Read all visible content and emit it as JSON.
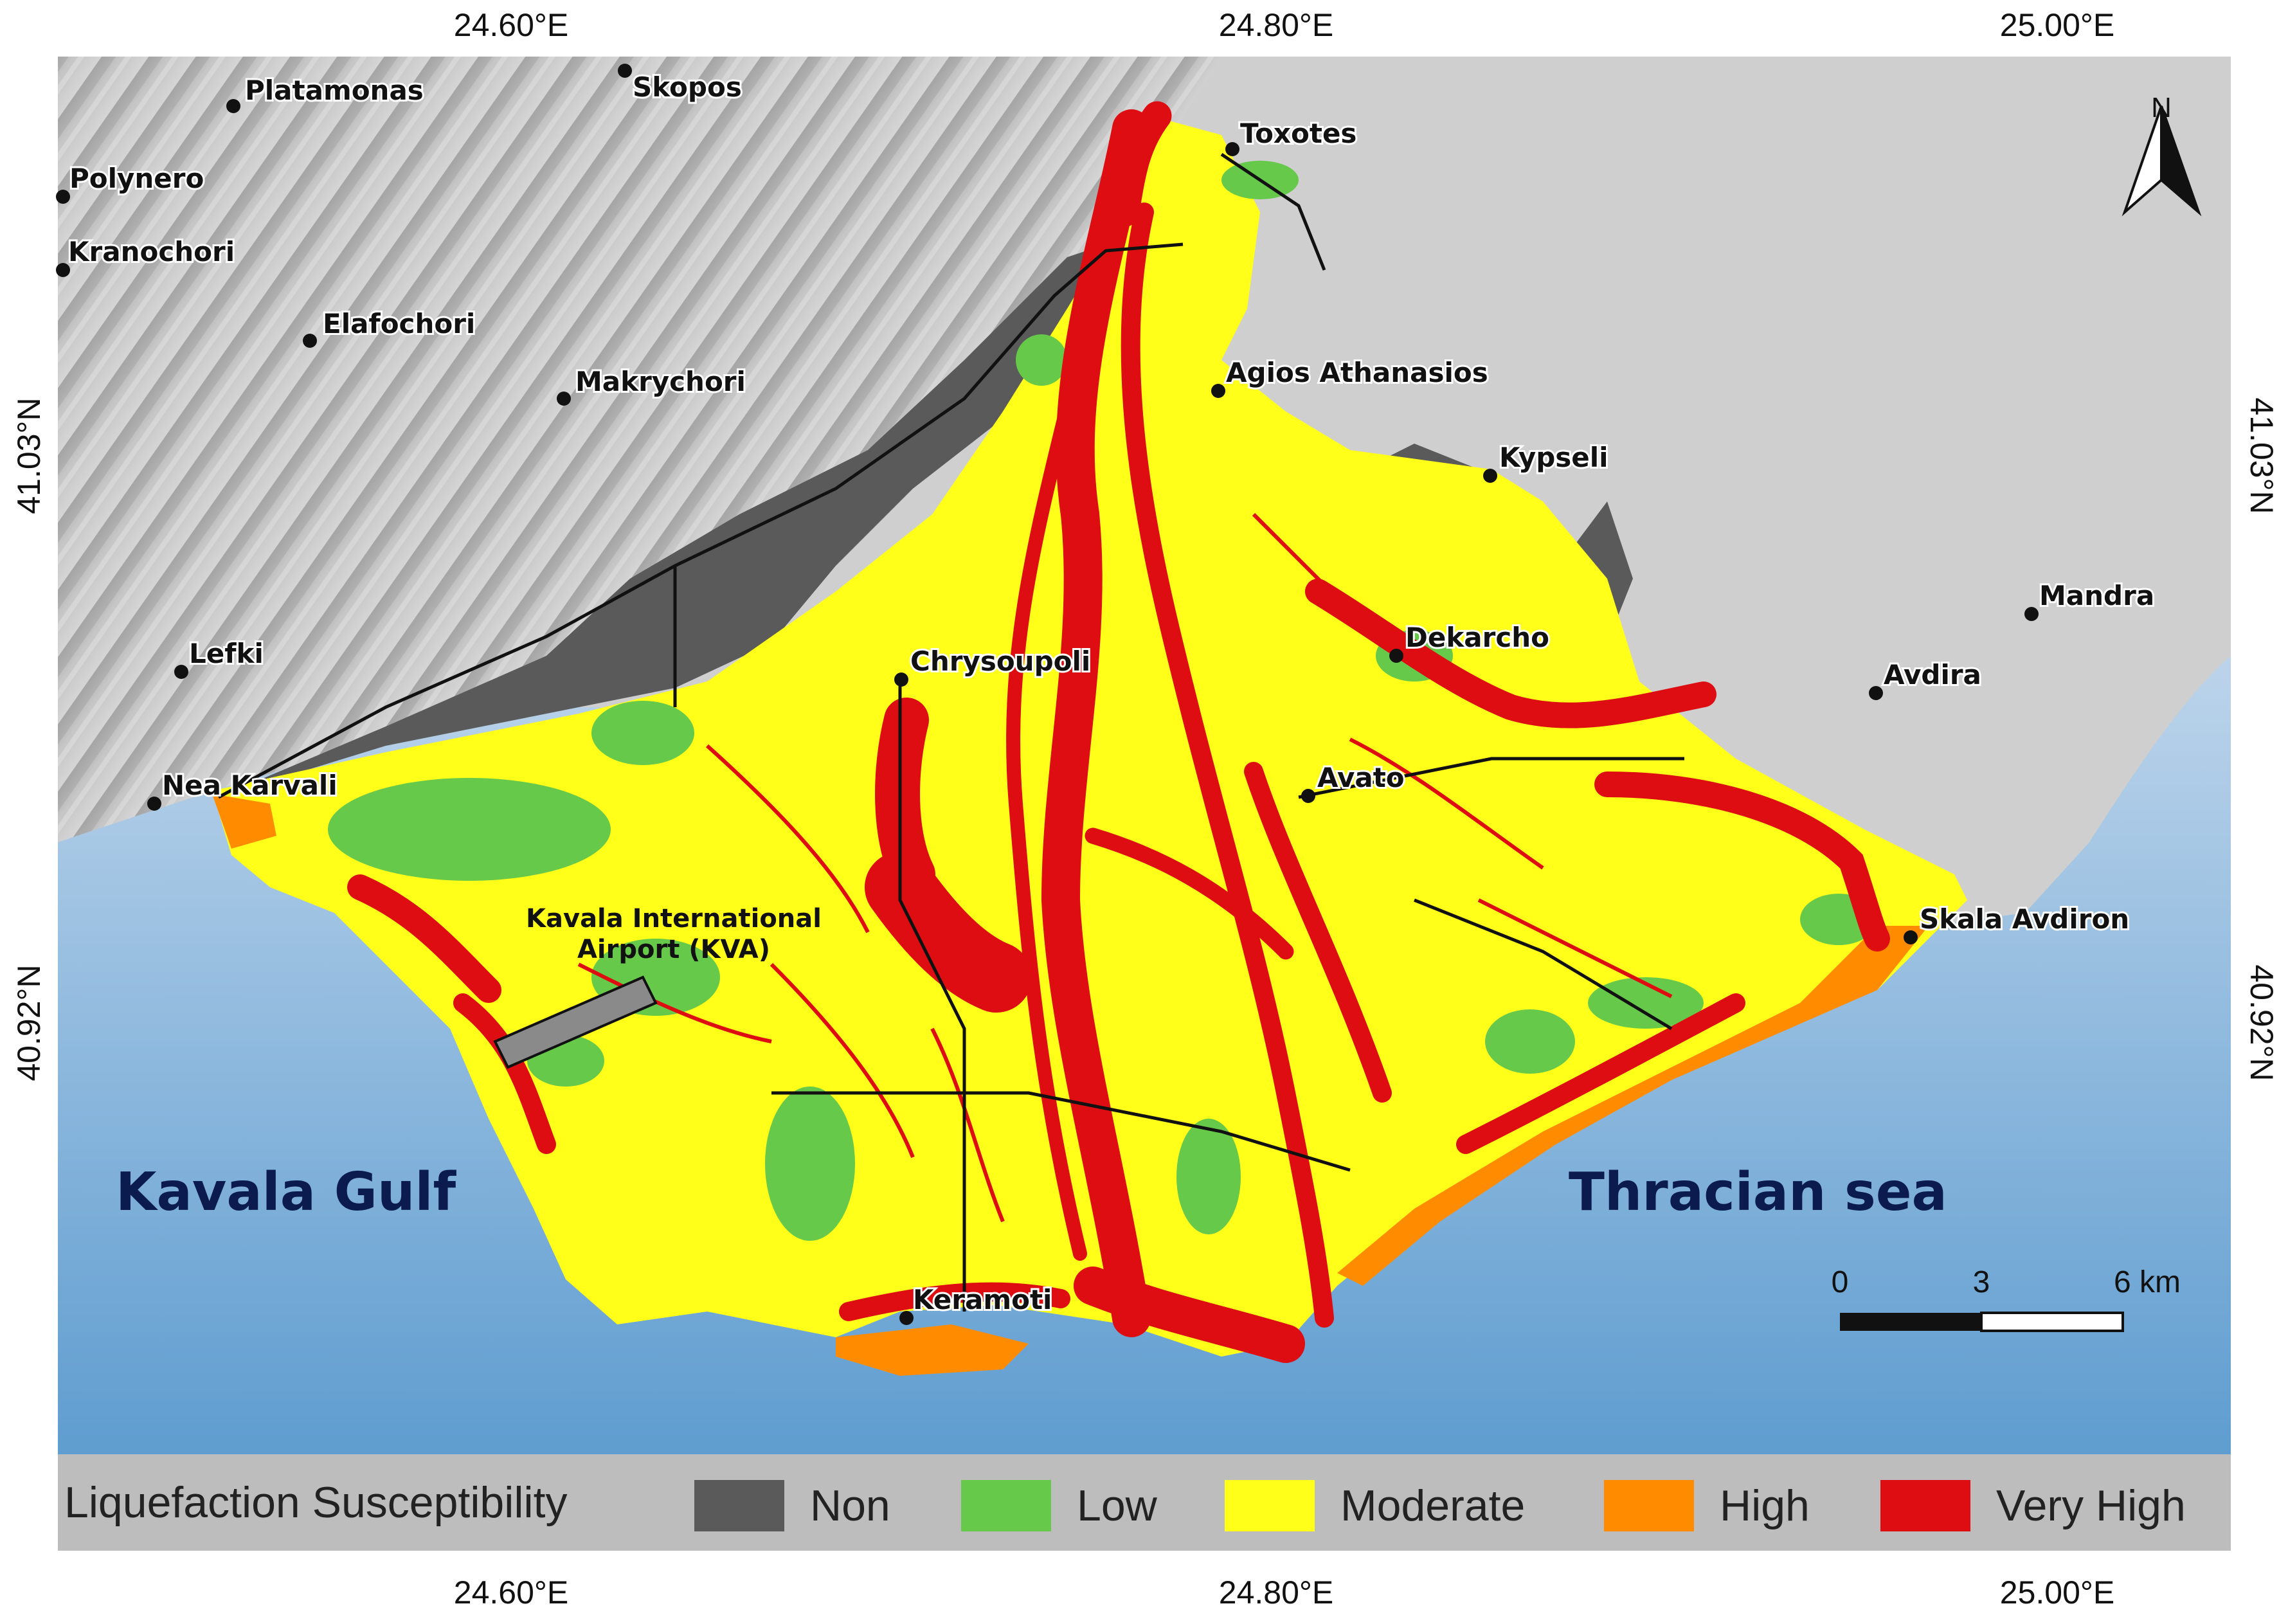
{
  "map": {
    "lon_labels": [
      "24.60°E",
      "24.80°E",
      "25.00°E"
    ],
    "lat_labels": [
      "41.03°N",
      "40.92°N"
    ],
    "places": [
      {
        "name": "Platamonas"
      },
      {
        "name": "Skopos"
      },
      {
        "name": "Toxotes"
      },
      {
        "name": "Polynero"
      },
      {
        "name": "Kranochori"
      },
      {
        "name": "Elafochori"
      },
      {
        "name": "Makrychori"
      },
      {
        "name": "Agios Athanasios"
      },
      {
        "name": "Kypseli"
      },
      {
        "name": "Lefki"
      },
      {
        "name": "Chrysoupoli"
      },
      {
        "name": "Dekarcho"
      },
      {
        "name": "Mandra"
      },
      {
        "name": "Avdira"
      },
      {
        "name": "Avato"
      },
      {
        "name": "Nea Karvali"
      },
      {
        "name": "Skala Avdiron"
      },
      {
        "name": "Keramoti"
      }
    ],
    "airport_label_line1": "Kavala International",
    "airport_label_line2": "Airport (KVA)",
    "sea_labels": [
      "Kavala Gulf",
      "Thracian sea"
    ],
    "north_arrow_label": "N",
    "scale_bar": {
      "ticks": [
        "0",
        "3",
        "6 km"
      ]
    }
  },
  "legend": {
    "title": "Liquefaction Susceptibility",
    "classes": [
      {
        "label": "Non",
        "color": "#5a5a5a"
      },
      {
        "label": "Low",
        "color": "#66c94a"
      },
      {
        "label": "Moderate",
        "color": "#ffff1a"
      },
      {
        "label": "High",
        "color": "#ff8c00"
      },
      {
        "label": "Very High",
        "color": "#dd0d12"
      }
    ]
  }
}
